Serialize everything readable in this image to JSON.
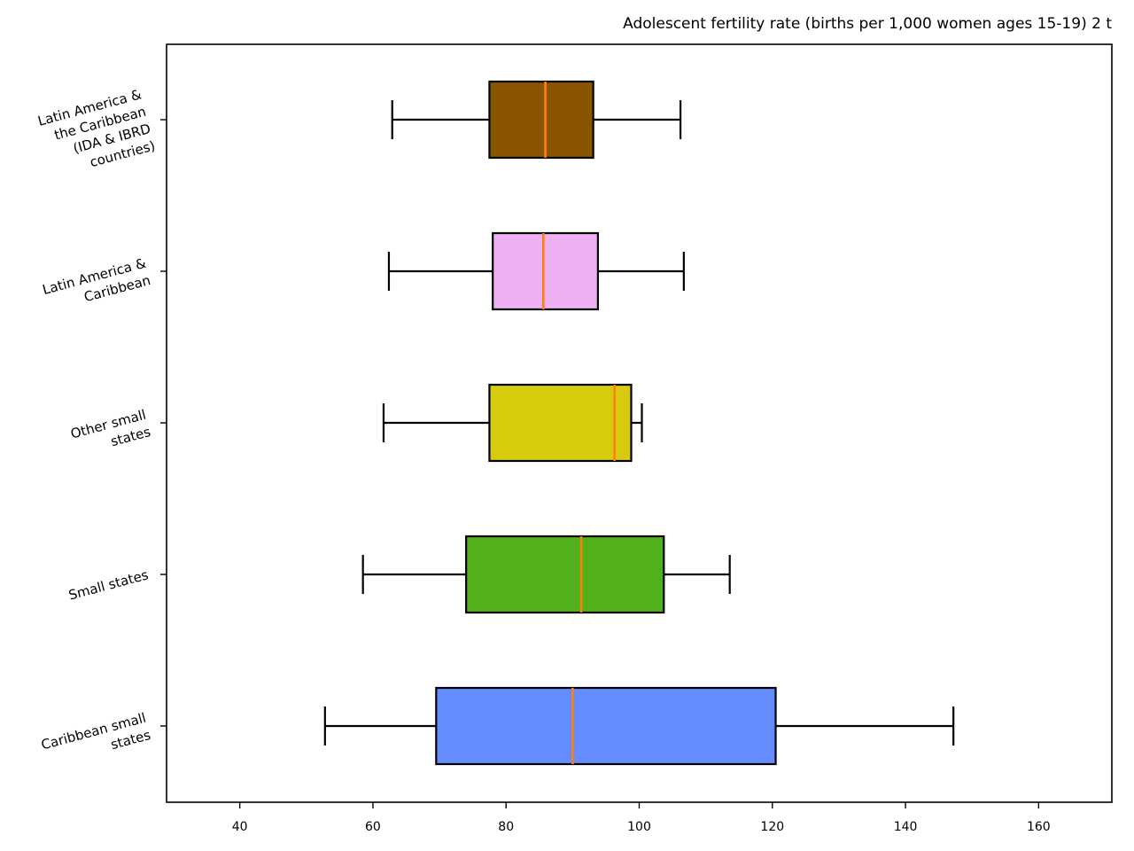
{
  "chart_data": {
    "type": "boxplot",
    "orientation": "horizontal",
    "title": "Adolescent fertility rate (births per 1,000 women ages 15-19) 2 t",
    "xlabel": "",
    "ylabel": "",
    "xlim": [
      29,
      171
    ],
    "xticks": [
      40,
      60,
      80,
      100,
      120,
      140,
      160
    ],
    "xtick_labels": [
      "40",
      "60",
      "80",
      "100",
      "120",
      "140",
      "160"
    ],
    "grid": false,
    "legend": "none",
    "median_color": "#ff7f0e",
    "categories_bottom_to_top": [
      "Caribbean small states",
      "Small states",
      "Other small states",
      "Latin America & Caribbean",
      "Latin America & the Caribbean (IDA & IBRD countries)"
    ],
    "boxes": [
      {
        "label": "Caribbean small states",
        "label_lines": [
          "Caribbean small",
          "states"
        ],
        "color": "#658cff",
        "whisker_low": 52.8,
        "q1": 69.5,
        "median": 90.0,
        "q3": 120.5,
        "whisker_high": 147.2
      },
      {
        "label": "Small states",
        "label_lines": [
          "Small states"
        ],
        "color": "#52b01a",
        "whisker_low": 58.5,
        "q1": 74.0,
        "median": 91.3,
        "q3": 103.7,
        "whisker_high": 113.6
      },
      {
        "label": "Other small states",
        "label_lines": [
          "Other small",
          "states"
        ],
        "color": "#d8ca0c",
        "whisker_low": 61.6,
        "q1": 77.5,
        "median": 96.3,
        "q3": 98.8,
        "whisker_high": 100.4
      },
      {
        "label": "Latin America & Caribbean",
        "label_lines": [
          "Latin America &",
          "Caribbean"
        ],
        "color": "#edb0f2",
        "whisker_low": 62.4,
        "q1": 78.0,
        "median": 85.6,
        "q3": 93.8,
        "whisker_high": 106.7
      },
      {
        "label": "Latin America & the Caribbean (IDA & IBRD countries)",
        "label_lines": [
          "Latin America &",
          "the Caribbean",
          "(IDA & IBRD",
          "countries)"
        ],
        "color": "#8a5500",
        "whisker_low": 62.9,
        "q1": 77.5,
        "median": 85.9,
        "q3": 93.1,
        "whisker_high": 106.2
      }
    ]
  }
}
